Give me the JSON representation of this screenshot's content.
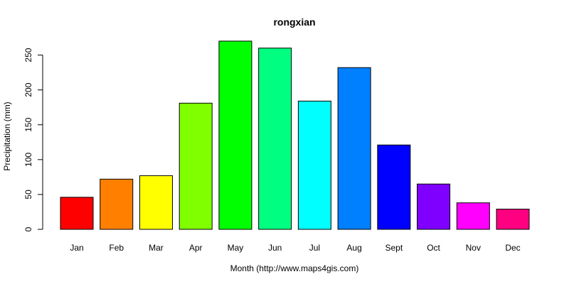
{
  "chart_data": {
    "type": "bar",
    "title": "rongxian",
    "xlabel": "Month (http://www.maps4gis.com)",
    "ylabel": "Precipitation (mm)",
    "categories": [
      "Jan",
      "Feb",
      "Mar",
      "Apr",
      "May",
      "Jun",
      "Jul",
      "Aug",
      "Sept",
      "Oct",
      "Nov",
      "Dec"
    ],
    "values": [
      46,
      72,
      77,
      181,
      270,
      260,
      184,
      232,
      121,
      65,
      38,
      29
    ],
    "colors": [
      "#ff0000",
      "#ff8000",
      "#ffff00",
      "#80ff00",
      "#00ff00",
      "#00ff80",
      "#00ffff",
      "#0080ff",
      "#0000ff",
      "#8000ff",
      "#ff00ff",
      "#ff0080"
    ],
    "ylim": [
      0,
      280
    ],
    "yticks": [
      0,
      50,
      100,
      150,
      200,
      250
    ],
    "grid": false,
    "legend": "none"
  }
}
